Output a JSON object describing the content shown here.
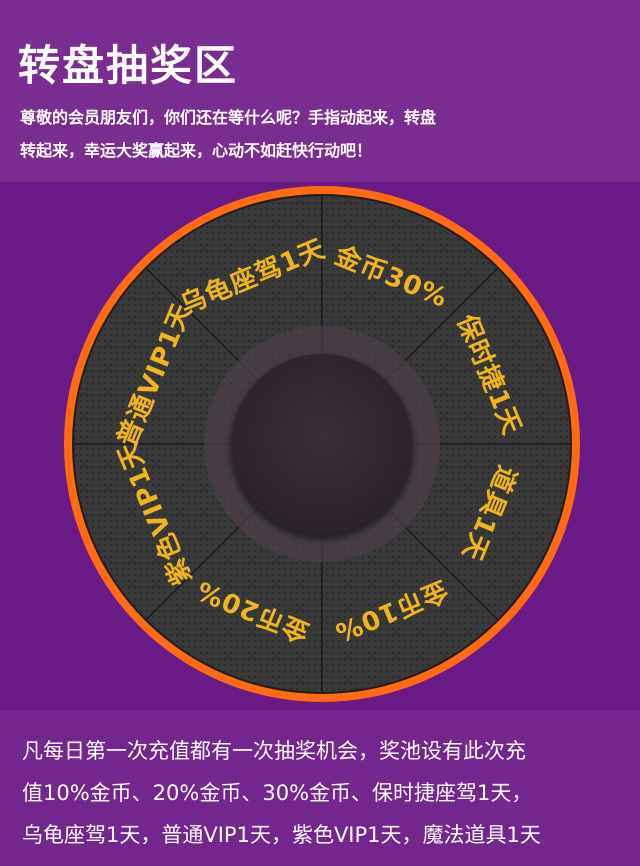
{
  "header": {
    "title": "转盘抽奖区",
    "intro_line1": "尊敬的会员朋友们，你们还在等什么呢？手指动起来，转盘",
    "intro_line2": "转起来，幸运大奖赢起来，心动不如赶快行动吧！"
  },
  "wheel": {
    "prizes": [
      "金币30%",
      "保时捷1天",
      "道具1天",
      "金币10%",
      "金币20%",
      "紫色VIP1天",
      "普通VIP1天",
      "乌龟座驾1天"
    ],
    "colors": {
      "rim": "#ff6a13",
      "segment": "#3a3a3a",
      "label": "#f0b51e"
    }
  },
  "footer": {
    "line1": "凡每日第一次充值都有一次抽奖机会，奖池设有此次充",
    "line2": "值10%金币、20%金币、30%金币、保时捷座驾1天，",
    "line3": "乌龟座驾1天，普通VIP1天，紫色VIP1天，魔法道具1天"
  }
}
